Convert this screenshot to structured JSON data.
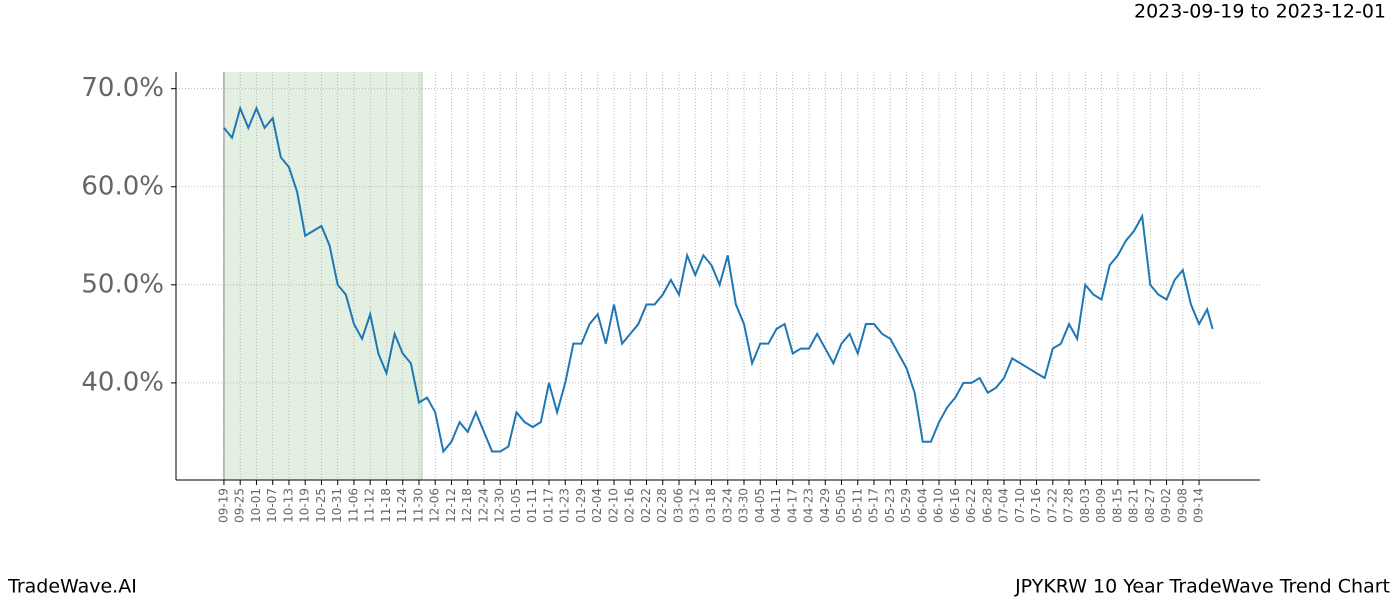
{
  "header": "2023-09-19 to 2023-12-01",
  "footer_left": "TradeWave.AI",
  "footer_right": "JPYKRW 10 Year TradeWave Trend Chart",
  "chart_data": {
    "type": "line",
    "x": [
      0,
      3,
      6,
      9,
      12,
      15,
      18,
      21,
      24,
      27,
      30,
      33,
      36,
      39,
      42,
      45,
      48,
      51,
      54,
      57,
      60,
      63,
      66,
      69,
      72,
      75,
      78,
      81,
      84,
      87,
      90,
      93,
      96,
      99,
      102,
      105,
      108,
      111,
      114,
      117,
      120,
      123,
      126,
      129,
      132,
      135,
      138,
      141,
      144,
      147,
      150,
      153,
      156,
      159,
      162,
      165,
      168,
      171,
      174,
      177,
      180,
      183,
      186,
      189,
      192,
      195,
      198,
      201,
      204,
      207,
      210,
      213,
      216,
      219,
      222,
      225,
      228,
      231,
      234,
      237,
      240,
      243,
      246,
      249,
      252,
      255,
      258,
      261,
      264,
      267,
      270,
      273,
      276,
      279,
      282,
      285,
      288,
      291,
      294,
      297,
      300,
      303,
      306,
      309,
      312,
      315,
      318,
      321,
      324,
      327,
      330,
      333,
      336,
      339,
      342,
      345,
      348,
      351,
      354,
      357,
      360,
      363,
      365
    ],
    "series": [
      {
        "color": "#1f77b4",
        "values": [
          66,
          65,
          68,
          66,
          68,
          66,
          67,
          63,
          62,
          59.5,
          55,
          55.5,
          56,
          54,
          50,
          49,
          46,
          44.5,
          47,
          43,
          41,
          45,
          43,
          42,
          38,
          38.5,
          37,
          33,
          34,
          36,
          35,
          37,
          35,
          33,
          33,
          33.5,
          37,
          36,
          35.5,
          36,
          40,
          37,
          40,
          44,
          44,
          46,
          47,
          44,
          48,
          44,
          45,
          46,
          48,
          48,
          49,
          50.5,
          49,
          53,
          51,
          53,
          52,
          50,
          53,
          48,
          46,
          42,
          44,
          44,
          45.5,
          46,
          43,
          43.5,
          43.5,
          45,
          43.5,
          42,
          44,
          45,
          43,
          46,
          46,
          45,
          44.5,
          43,
          41.5,
          39,
          34,
          34,
          36,
          37.5,
          38.5,
          40,
          40,
          40.5,
          39,
          39.5,
          40.5,
          42.5,
          42,
          41.5,
          41,
          40.5,
          43.5,
          44,
          46,
          44.5,
          50,
          49,
          48.5,
          52,
          53,
          54.5,
          55.5,
          57,
          50,
          49,
          48.5,
          50.5,
          51.5,
          48,
          46,
          47.5,
          45.5
        ]
      }
    ],
    "xlim": [
      -17.7,
      382.5
    ],
    "ylim": [
      30.1,
      71.7
    ],
    "shade": [
      0,
      73
    ],
    "grid": true,
    "xticks": [
      {
        "value": 0,
        "label": "09-19"
      },
      {
        "value": 6,
        "label": "09-25"
      },
      {
        "value": 12,
        "label": "10-01"
      },
      {
        "value": 18,
        "label": "10-07"
      },
      {
        "value": 24,
        "label": "10-13"
      },
      {
        "value": 30,
        "label": "10-19"
      },
      {
        "value": 36,
        "label": "10-25"
      },
      {
        "value": 42,
        "label": "10-31"
      },
      {
        "value": 48,
        "label": "11-06"
      },
      {
        "value": 54,
        "label": "11-12"
      },
      {
        "value": 60,
        "label": "11-18"
      },
      {
        "value": 66,
        "label": "11-24"
      },
      {
        "value": 72,
        "label": "11-30"
      },
      {
        "value": 78,
        "label": "12-06"
      },
      {
        "value": 84,
        "label": "12-12"
      },
      {
        "value": 90,
        "label": "12-18"
      },
      {
        "value": 96,
        "label": "12-24"
      },
      {
        "value": 102,
        "label": "12-30"
      },
      {
        "value": 108,
        "label": "01-05"
      },
      {
        "value": 114,
        "label": "01-11"
      },
      {
        "value": 120,
        "label": "01-17"
      },
      {
        "value": 126,
        "label": "01-23"
      },
      {
        "value": 132,
        "label": "01-29"
      },
      {
        "value": 138,
        "label": "02-04"
      },
      {
        "value": 144,
        "label": "02-10"
      },
      {
        "value": 150,
        "label": "02-16"
      },
      {
        "value": 156,
        "label": "02-22"
      },
      {
        "value": 162,
        "label": "02-28"
      },
      {
        "value": 168,
        "label": "03-06"
      },
      {
        "value": 174,
        "label": "03-12"
      },
      {
        "value": 180,
        "label": "03-18"
      },
      {
        "value": 186,
        "label": "03-24"
      },
      {
        "value": 192,
        "label": "03-30"
      },
      {
        "value": 198,
        "label": "04-05"
      },
      {
        "value": 204,
        "label": "04-11"
      },
      {
        "value": 210,
        "label": "04-17"
      },
      {
        "value": 216,
        "label": "04-23"
      },
      {
        "value": 222,
        "label": "04-29"
      },
      {
        "value": 228,
        "label": "05-05"
      },
      {
        "value": 234,
        "label": "05-11"
      },
      {
        "value": 240,
        "label": "05-17"
      },
      {
        "value": 246,
        "label": "05-23"
      },
      {
        "value": 252,
        "label": "05-29"
      },
      {
        "value": 258,
        "label": "06-04"
      },
      {
        "value": 264,
        "label": "06-10"
      },
      {
        "value": 270,
        "label": "06-16"
      },
      {
        "value": 276,
        "label": "06-22"
      },
      {
        "value": 282,
        "label": "06-28"
      },
      {
        "value": 288,
        "label": "07-04"
      },
      {
        "value": 294,
        "label": "07-10"
      },
      {
        "value": 300,
        "label": "07-16"
      },
      {
        "value": 306,
        "label": "07-22"
      },
      {
        "value": 312,
        "label": "07-28"
      },
      {
        "value": 318,
        "label": "08-03"
      },
      {
        "value": 324,
        "label": "08-09"
      },
      {
        "value": 330,
        "label": "08-15"
      },
      {
        "value": 336,
        "label": "08-21"
      },
      {
        "value": 342,
        "label": "08-27"
      },
      {
        "value": 348,
        "label": "09-02"
      },
      {
        "value": 354,
        "label": "09-08"
      },
      {
        "value": 360,
        "label": "09-14"
      }
    ],
    "yticks": [
      {
        "value": 40,
        "label": "40.0%"
      },
      {
        "value": 50,
        "label": "50.0%"
      },
      {
        "value": 60,
        "label": "60.0%"
      },
      {
        "value": 70,
        "label": "70.0%"
      }
    ]
  }
}
